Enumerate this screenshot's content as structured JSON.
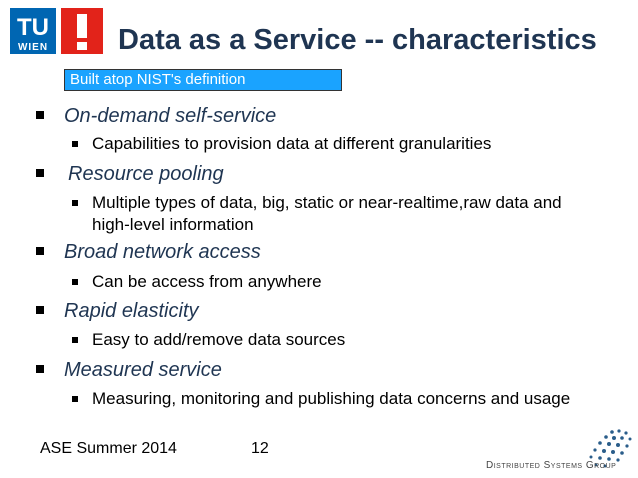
{
  "header": {
    "logo_tu_text": "TU",
    "logo_wien_text": "WIEN",
    "title": "Data as a Service -- characteristics"
  },
  "callout": "Built atop NIST's definition",
  "bullets": [
    {
      "label": "On-demand self-service",
      "sub": [
        "Capabilities to provision data at different granularities"
      ]
    },
    {
      "label": "Resource pooling",
      "sub": [
        "Multiple types of data, big, static or near-realtime,raw data and high-level information"
      ]
    },
    {
      "label": "Broad network access",
      "sub": [
        "Can be access from anywhere"
      ]
    },
    {
      "label": "Rapid elasticity",
      "sub": [
        "Easy to add/remove data sources"
      ]
    },
    {
      "label": "Measured service",
      "sub": [
        "Measuring, monitoring and publishing data concerns and usage"
      ]
    }
  ],
  "footer": {
    "course": "ASE Summer 2014",
    "page": "12",
    "group": "Distributed Systems Group"
  },
  "colors": {
    "title": "#1f3552",
    "callout_bg": "#1aa3ff",
    "logo_blue": "#0066b2",
    "logo_red": "#e2231a"
  },
  "icons": [
    "tu-wien-logo-icon",
    "exclamation-logo-icon",
    "distributed-systems-group-logo-icon"
  ]
}
